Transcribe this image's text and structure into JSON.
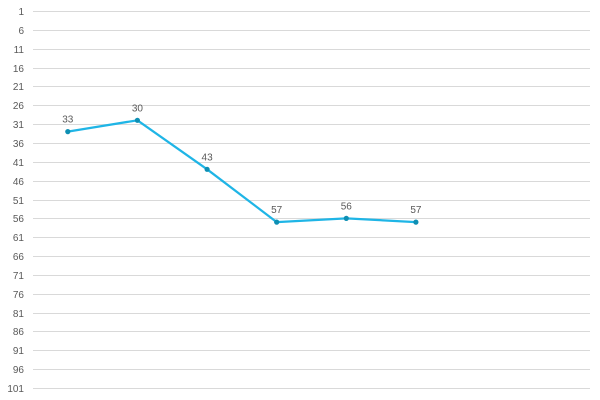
{
  "chart_data": {
    "type": "line",
    "title": "",
    "xlabel": "",
    "ylabel": "",
    "y_axis": {
      "reversed": true,
      "min": 1,
      "max": 101,
      "tick_step": 5,
      "ticks": [
        1,
        6,
        11,
        16,
        21,
        26,
        31,
        36,
        41,
        46,
        51,
        56,
        61,
        66,
        71,
        76,
        81,
        86,
        91,
        96,
        101
      ]
    },
    "x": [
      1,
      2,
      3,
      4,
      5,
      6
    ],
    "x_slots": 8,
    "grid": true,
    "legend": "none",
    "series": [
      {
        "values": [
          33,
          30,
          43,
          57,
          56,
          57
        ],
        "labels": [
          "33",
          "30",
          "43",
          "57",
          "56",
          "57"
        ],
        "line_color": "#1fb5e6",
        "marker_color": "#0e8fb3"
      }
    ]
  }
}
